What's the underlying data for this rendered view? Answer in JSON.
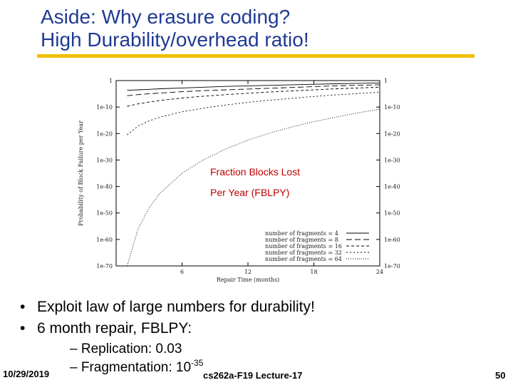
{
  "title": {
    "line1": "Aside: Why erasure coding?",
    "line2": "High Durability/overhead ratio!"
  },
  "chart_data": {
    "type": "line",
    "title": "",
    "xlabel": "Repair Time (months)",
    "ylabel": "Probability of Block Failure per Year",
    "x_ticks": [
      6,
      12,
      18,
      24
    ],
    "x_tick_labels": [
      "6",
      "12",
      "18",
      "24"
    ],
    "xlim": [
      0,
      24
    ],
    "y_scale": "log",
    "y_ticks": [
      1,
      1e-10,
      1e-20,
      1e-30,
      1e-40,
      1e-50,
      1e-60,
      1e-70
    ],
    "y_tick_labels": [
      "1",
      "1e-10",
      "1e-20",
      "1e-30",
      "1e-40",
      "1e-50",
      "1e-60",
      "1e-70"
    ],
    "ylim": [
      1e-70,
      1
    ],
    "legend_position": "bottom-right",
    "annotation": [
      "Fraction Blocks Lost",
      "Per Year (FBLPY)"
    ],
    "x": [
      1,
      2,
      3,
      4,
      6,
      8,
      10,
      12,
      14,
      16,
      18,
      20,
      22,
      24
    ],
    "series": [
      {
        "name": "number of fragments = 4",
        "values": [
          -3.7,
          -3.5,
          -3.3,
          -3.1,
          -2.8,
          -2.5,
          -2.2,
          -2.0,
          -1.8,
          -1.6,
          -1.4,
          -1.2,
          -1.05,
          -0.9
        ]
      },
      {
        "name": "number of fragments = 8",
        "values": [
          -5.7,
          -5.3,
          -5.0,
          -4.7,
          -4.2,
          -3.8,
          -3.5,
          -3.2,
          -2.9,
          -2.6,
          -2.3,
          -2.0,
          -1.8,
          -1.6
        ]
      },
      {
        "name": "number of fragments = 16",
        "values": [
          -9.7,
          -8.8,
          -8.1,
          -7.5,
          -6.6,
          -5.9,
          -5.3,
          -4.8,
          -4.3,
          -3.9,
          -3.5,
          -3.1,
          -2.8,
          -2.5
        ]
      },
      {
        "name": "number of fragments = 32",
        "values": [
          -20.5,
          -17.2,
          -15.2,
          -13.8,
          -11.8,
          -10.4,
          -9.2,
          -8.2,
          -7.4,
          -6.7,
          -6.0,
          -5.4,
          -4.9,
          -4.4
        ]
      },
      {
        "name": "number of fragments = 64",
        "values": [
          -70.0,
          -56.0,
          -48.0,
          -42.5,
          -35.0,
          -29.8,
          -25.8,
          -22.5,
          -19.8,
          -17.5,
          -15.5,
          -13.8,
          -12.2,
          -10.8
        ]
      }
    ]
  },
  "bullets": [
    "Exploit law of large numbers for durability!",
    "6 month repair, FBLPY:"
  ],
  "sub_bullets": {
    "replication": "– Replication: 0.03",
    "fragmentation_prefix": "– Fragmentation: 10",
    "fragmentation_exp": "-35"
  },
  "footer": {
    "date": "10/29/2019",
    "lecture": "cs262a-F19 Lecture-17",
    "page": "50"
  }
}
